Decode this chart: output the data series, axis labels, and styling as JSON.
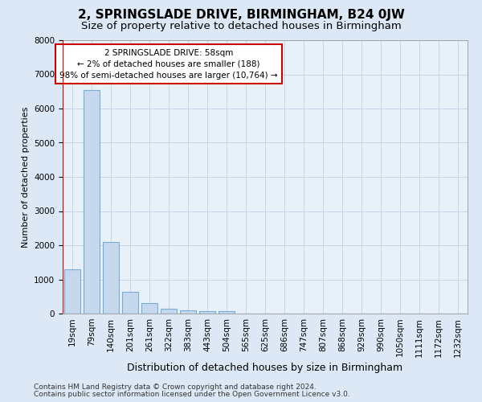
{
  "title_line1": "2, SPRINGSLADE DRIVE, BIRMINGHAM, B24 0JW",
  "title_line2": "Size of property relative to detached houses in Birmingham",
  "xlabel": "Distribution of detached houses by size in Birmingham",
  "ylabel": "Number of detached properties",
  "footer_line1": "Contains HM Land Registry data © Crown copyright and database right 2024.",
  "footer_line2": "Contains public sector information licensed under the Open Government Licence v3.0.",
  "categories": [
    "19sqm",
    "79sqm",
    "140sqm",
    "201sqm",
    "261sqm",
    "322sqm",
    "383sqm",
    "443sqm",
    "504sqm",
    "565sqm",
    "625sqm",
    "686sqm",
    "747sqm",
    "807sqm",
    "868sqm",
    "929sqm",
    "990sqm",
    "1050sqm",
    "1111sqm",
    "1172sqm",
    "1232sqm"
  ],
  "values": [
    1300,
    6550,
    2100,
    630,
    300,
    150,
    100,
    80,
    75,
    0,
    0,
    0,
    0,
    0,
    0,
    0,
    0,
    0,
    0,
    0,
    0
  ],
  "bar_color": "#c5d8ee",
  "bar_edge_color": "#7aadd4",
  "highlight_color": "#cc0000",
  "vline_x": -0.5,
  "annotation_text_line1": "2 SPRINGSLADE DRIVE: 58sqm",
  "annotation_text_line2": "← 2% of detached houses are smaller (188)",
  "annotation_text_line3": "98% of semi-detached houses are larger (10,764) →",
  "annotation_box_facecolor": "#ffffff",
  "annotation_box_edgecolor": "#cc0000",
  "ylim": [
    0,
    8000
  ],
  "yticks": [
    0,
    1000,
    2000,
    3000,
    4000,
    5000,
    6000,
    7000,
    8000
  ],
  "grid_color": "#c5d5e8",
  "bg_color": "#dce8f5",
  "plot_bg_color": "#e8f0f8",
  "title_fontsize": 11,
  "subtitle_fontsize": 9.5,
  "xlabel_fontsize": 9,
  "ylabel_fontsize": 8,
  "tick_fontsize": 7.5,
  "annotation_fontsize": 7.5,
  "footer_fontsize": 6.5
}
